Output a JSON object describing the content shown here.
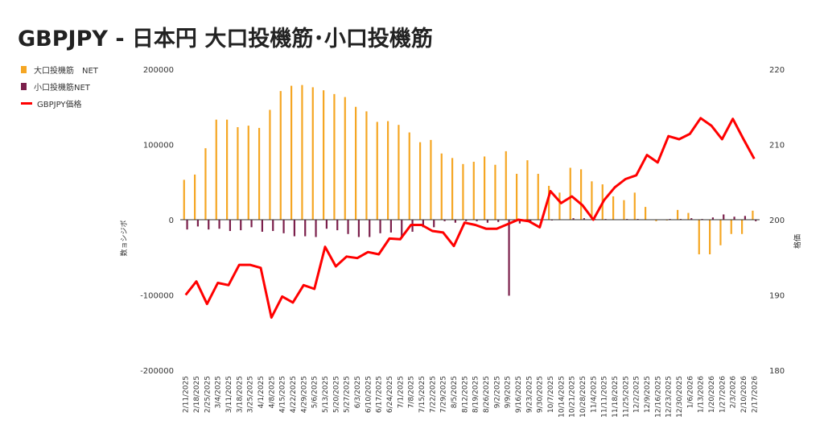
{
  "title": "GBPJPY - 日本円 大口投機筋･小口投機筋",
  "colors": {
    "large": "#f5a623",
    "small": "#7b1f4b",
    "price": "#ff0000",
    "zero": "#333333"
  },
  "chart_data": {
    "type": "bar+line",
    "title": "GBPJPY - 日本円 大口投機筋･小口投機筋",
    "ylabel_left": "数ョシジボ",
    "ylabel_right": "格価",
    "ylim_left": [
      -200000,
      200000
    ],
    "ylim_right": [
      180,
      220
    ],
    "yticks_left": [
      "200000",
      "100000",
      "0",
      "-100000",
      "-200000"
    ],
    "yticks_right": [
      "220",
      "210",
      "200",
      "190",
      "180"
    ],
    "legend_position": "top-left",
    "x": [
      "2/11/2025",
      "2/18/2025",
      "2/25/2025",
      "3/4/2025",
      "3/11/2025",
      "3/18/2025",
      "3/25/2025",
      "4/1/2025",
      "4/8/2025",
      "4/15/2025",
      "4/22/2025",
      "4/29/2025",
      "5/6/2025",
      "5/13/2025",
      "5/20/2025",
      "5/27/2025",
      "6/3/2025",
      "6/10/2025",
      "6/17/2025",
      "6/24/2025",
      "7/1/2025",
      "7/8/2025",
      "7/15/2025",
      "7/22/2025",
      "7/29/2025",
      "8/5/2025",
      "8/12/2025",
      "8/19/2025",
      "8/26/2025",
      "9/2/2025",
      "9/9/2025",
      "9/16/2025",
      "9/23/2025",
      "9/30/2025",
      "10/7/2025",
      "10/14/2025",
      "10/21/2025",
      "10/28/2025",
      "11/4/2025",
      "11/11/2025",
      "11/18/2025",
      "11/25/2025",
      "12/2/2025",
      "12/9/2025",
      "12/16/2025",
      "12/23/2025",
      "12/30/2025",
      "1/6/2026",
      "1/13/2026",
      "1/20/2026",
      "1/27/2026",
      "2/3/2026",
      "2/10/2026",
      "2/17/2026"
    ],
    "series": [
      {
        "name": "大口投機筋　NET",
        "type": "bar",
        "values": [
          53000,
          60000,
          95000,
          133000,
          133000,
          123000,
          125000,
          122000,
          146000,
          171000,
          178000,
          179000,
          176000,
          172000,
          167000,
          163000,
          150000,
          144000,
          130000,
          131000,
          126000,
          116000,
          103000,
          106000,
          88000,
          82000,
          74000,
          77000,
          84000,
          73000,
          91000,
          61000,
          79000,
          61000,
          45000,
          36000,
          69000,
          67000,
          51000,
          47000,
          31000,
          26000,
          36000,
          17000,
          -2000,
          -1000,
          13000,
          9000,
          -46000,
          -46000,
          -34000,
          -19000,
          -19000,
          12000
        ]
      },
      {
        "name": "小口投機筋NET",
        "type": "bar",
        "values": [
          -13000,
          -9000,
          -13000,
          -12000,
          -15000,
          -14000,
          -10000,
          -16000,
          -15000,
          -18000,
          -22000,
          -22000,
          -23000,
          -12000,
          -14000,
          -19000,
          -23000,
          -23000,
          -18000,
          -17000,
          -24000,
          -16000,
          -10000,
          -10000,
          -2000,
          -4000,
          -2000,
          -2000,
          -4000,
          -3000,
          -101000,
          -5000,
          -2000,
          -2000,
          -1000,
          0,
          2000,
          2000,
          1000,
          1000,
          0,
          1000,
          1000,
          0,
          0,
          1000,
          1000,
          2000,
          1000,
          3000,
          7000,
          4000,
          5000,
          -2000
        ]
      },
      {
        "name": "GBPJPY価格",
        "type": "line",
        "values": [
          190.0,
          191.8,
          188.8,
          191.6,
          191.3,
          194.0,
          194.0,
          193.6,
          187.0,
          189.8,
          189.0,
          191.3,
          190.8,
          196.4,
          193.8,
          195.1,
          194.9,
          195.7,
          195.4,
          197.5,
          197.4,
          199.3,
          199.3,
          198.5,
          198.3,
          196.5,
          199.6,
          199.3,
          198.8,
          198.8,
          199.4,
          200.0,
          199.8,
          199.0,
          203.8,
          202.2,
          203.1,
          201.9,
          200.0,
          202.6,
          204.3,
          205.4,
          205.9,
          208.6,
          207.6,
          211.1,
          210.7,
          211.4,
          213.5,
          212.5,
          210.7,
          213.4,
          210.7,
          208.1
        ]
      }
    ]
  }
}
